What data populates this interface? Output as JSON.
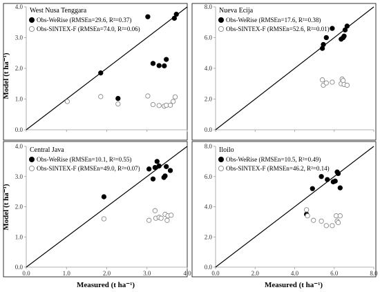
{
  "figure": {
    "xlabel_left": "Measured (t ha⁻¹)",
    "xlabel_right": "Measured (t ha⁻¹)",
    "ylabel_top": "Model (t ha⁻¹)",
    "ylabel_bottom": "Model (t ha⁻¹)"
  },
  "chart_data": [
    {
      "type": "scatter",
      "title": "West Nusa Tenggara",
      "xlim": [
        0,
        4
      ],
      "ylim": [
        0,
        4
      ],
      "x_ticks": [
        "",
        "",
        "",
        "",
        ""
      ],
      "y_ticks": [
        "0.0",
        "1.0",
        "2.0",
        "3.0",
        "4.0"
      ],
      "one_to_one_line": true,
      "legend_placement": "top-left",
      "series": [
        {
          "name": "Obs-WeRise (RMSEn=29.6, R²=0.37)",
          "marker": "filled-circle",
          "x": [
            1.85,
            2.28,
            3.02,
            3.15,
            3.3,
            3.43,
            3.48,
            3.68,
            3.73
          ],
          "y": [
            1.85,
            1.02,
            3.68,
            2.16,
            2.09,
            2.08,
            2.29,
            3.63,
            3.76
          ]
        },
        {
          "name": "Obs-SINTEX-F (RMSEn=74.0, R²=0.06)",
          "marker": "open-circle",
          "x": [
            1.02,
            1.85,
            2.28,
            3.02,
            3.15,
            3.3,
            3.43,
            3.48,
            3.58,
            3.65,
            3.7
          ],
          "y": [
            0.92,
            1.08,
            0.84,
            1.1,
            0.82,
            0.79,
            0.77,
            0.8,
            0.8,
            0.92,
            1.07
          ]
        }
      ]
    },
    {
      "type": "scatter",
      "title": "Nueva Ecija",
      "xlim": [
        0,
        8
      ],
      "ylim": [
        0,
        8
      ],
      "x_ticks": [
        "",
        "",
        "",
        "",
        ""
      ],
      "y_ticks": [
        "0.0",
        "2.0",
        "4.0",
        "6.0",
        "8.0"
      ],
      "one_to_one_line": true,
      "legend_placement": "top-left",
      "series": [
        {
          "name": "Obs-WeRise (RMSEn=17.6, R²=0.38)",
          "marker": "filled-circle",
          "x": [
            5.4,
            5.45,
            5.6,
            5.9,
            6.35,
            6.45,
            6.5,
            6.55,
            6.65
          ],
          "y": [
            5.3,
            5.55,
            6.0,
            6.6,
            5.9,
            6.0,
            6.1,
            6.5,
            6.75
          ]
        },
        {
          "name": "Obs-SINTEX-F (RMSEn=52.6, R²=0.01)",
          "marker": "open-circle",
          "x": [
            5.4,
            5.45,
            5.6,
            5.9,
            6.35,
            6.4,
            6.45,
            6.5,
            6.65
          ],
          "y": [
            3.25,
            2.9,
            3.05,
            3.1,
            3.0,
            3.3,
            3.2,
            2.95,
            2.9
          ]
        }
      ]
    },
    {
      "type": "scatter",
      "title": "Central Java",
      "xlim": [
        0,
        4
      ],
      "ylim": [
        0,
        4
      ],
      "x_ticks": [
        "0.0",
        "1.0",
        "2.0",
        "3.0",
        "4.0"
      ],
      "y_ticks": [
        "0.0",
        "1.0",
        "2.0",
        "3.0",
        "4.0"
      ],
      "one_to_one_line": true,
      "legend_placement": "top-left",
      "series": [
        {
          "name": "Obs-WeRise (RMSEn=10.1, R²=0.55)",
          "marker": "filled-circle",
          "x": [
            1.93,
            3.05,
            3.15,
            3.2,
            3.25,
            3.3,
            3.42,
            3.45,
            3.48,
            3.58
          ],
          "y": [
            2.33,
            3.25,
            2.92,
            3.3,
            3.5,
            3.35,
            2.97,
            3.02,
            3.33,
            3.2
          ]
        },
        {
          "name": "Obs-SINTEX-F (RMSEn=49.0, R²=0.07)",
          "marker": "open-circle",
          "x": [
            1.93,
            3.05,
            3.2,
            3.22,
            3.3,
            3.35,
            3.45,
            3.5,
            3.52,
            3.6
          ],
          "y": [
            1.6,
            1.55,
            1.87,
            1.62,
            1.65,
            1.62,
            1.75,
            1.55,
            1.7,
            1.72
          ]
        }
      ]
    },
    {
      "type": "scatter",
      "title": "Iloilo",
      "xlim": [
        0,
        8
      ],
      "ylim": [
        0,
        8
      ],
      "x_ticks": [
        "0.0",
        "2.0",
        "4.0",
        "6.0",
        "8.0"
      ],
      "y_ticks": [
        "0.0",
        "2.0",
        "4.0",
        "6.0",
        "8.0"
      ],
      "one_to_one_line": true,
      "legend_placement": "top-left",
      "series": [
        {
          "name": "Obs-WeRise (RMSEn=10.5, R²=0.49)",
          "marker": "filled-circle",
          "x": [
            4.6,
            4.9,
            5.35,
            5.65,
            5.95,
            6.05,
            6.15,
            6.2,
            6.3
          ],
          "y": [
            3.5,
            5.2,
            6.0,
            5.8,
            5.65,
            5.7,
            6.3,
            6.2,
            5.25
          ]
        },
        {
          "name": "Obs-SINTEX-F (RMSEn=46.2, R²=0.14)",
          "marker": "open-circle",
          "x": [
            4.6,
            4.65,
            4.95,
            5.35,
            5.6,
            5.9,
            6.1,
            6.15,
            6.2,
            6.3
          ],
          "y": [
            3.8,
            3.4,
            3.1,
            3.05,
            2.75,
            2.75,
            3.4,
            3.05,
            2.95,
            3.4
          ]
        }
      ]
    }
  ]
}
